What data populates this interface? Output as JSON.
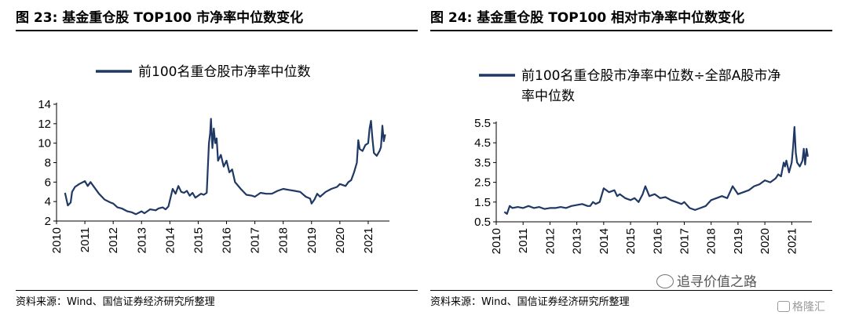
{
  "panels": [
    {
      "title": "图 23:  基金重仓股 TOP100 市净率中位数变化",
      "source": "资料来源：Wind、国信证券经济研究所整理"
    },
    {
      "title": "图 24:  基金重仓股 TOP100 相对市净率中位数变化",
      "source": "资料来源：Wind、国信证券经济研究所整理"
    }
  ],
  "chart_data": [
    {
      "type": "line",
      "legend": [
        "前100名重仓股市净率中位数"
      ],
      "legend_position": "top",
      "x_tick_labels": [
        "2010",
        "2011",
        "2012",
        "2013",
        "2014",
        "2015",
        "2016",
        "2017",
        "2018",
        "2019",
        "2020",
        "2021"
      ],
      "y_tick_labels": [
        "2",
        "4",
        "6",
        "8",
        "10",
        "12",
        "14"
      ],
      "xlim": [
        2010.0,
        2021.75
      ],
      "ylim": [
        2,
        14
      ],
      "y_ticks": [
        2,
        4,
        6,
        8,
        10,
        12,
        14
      ],
      "grid": false,
      "color": "#1f3864",
      "series": [
        {
          "x": [
            2010.3,
            2010.4,
            2010.5,
            2010.55,
            2010.65,
            2010.8,
            2011.0,
            2011.1,
            2011.2,
            2011.35,
            2011.5,
            2011.7,
            2011.9,
            2012.0,
            2012.15,
            2012.3,
            2012.5,
            2012.65,
            2012.8,
            2013.0,
            2013.1,
            2013.3,
            2013.5,
            2013.6,
            2013.75,
            2013.85,
            2013.95,
            2014.1,
            2014.2,
            2014.3,
            2014.4,
            2014.5,
            2014.6,
            2014.7,
            2014.8,
            2014.9,
            2015.0,
            2015.1,
            2015.2,
            2015.3,
            2015.38,
            2015.42,
            2015.45,
            2015.5,
            2015.55,
            2015.6,
            2015.65,
            2015.7,
            2015.8,
            2015.9,
            2016.0,
            2016.1,
            2016.2,
            2016.3,
            2016.5,
            2016.7,
            2016.9,
            2017.0,
            2017.2,
            2017.4,
            2017.6,
            2017.8,
            2018.0,
            2018.2,
            2018.4,
            2018.6,
            2018.8,
            2018.95,
            2019.0,
            2019.1,
            2019.2,
            2019.3,
            2019.5,
            2019.7,
            2019.9,
            2020.0,
            2020.2,
            2020.3,
            2020.4,
            2020.5,
            2020.6,
            2020.65,
            2020.7,
            2020.8,
            2020.9,
            2021.0,
            2021.05,
            2021.1,
            2021.15,
            2021.2,
            2021.3,
            2021.4,
            2021.45,
            2021.5,
            2021.55,
            2021.6
          ],
          "y": [
            4.9,
            3.6,
            3.9,
            5.0,
            5.5,
            5.8,
            6.1,
            5.6,
            6.0,
            5.4,
            4.8,
            4.2,
            3.9,
            3.8,
            3.4,
            3.3,
            3.0,
            2.9,
            2.7,
            3.0,
            2.8,
            3.2,
            3.1,
            3.3,
            3.4,
            3.2,
            3.5,
            5.3,
            4.8,
            5.6,
            5.0,
            4.9,
            5.1,
            4.6,
            4.9,
            4.4,
            4.6,
            4.8,
            4.7,
            4.9,
            10.0,
            11.0,
            12.5,
            9.5,
            11.5,
            10.0,
            10.5,
            8.2,
            8.8,
            7.6,
            8.2,
            7.0,
            7.3,
            6.0,
            5.3,
            4.7,
            4.6,
            4.5,
            4.9,
            4.8,
            4.8,
            5.1,
            5.3,
            5.2,
            5.1,
            5.0,
            4.5,
            4.3,
            3.8,
            4.2,
            4.8,
            4.5,
            5.0,
            5.3,
            5.5,
            5.8,
            5.6,
            6.0,
            6.2,
            7.0,
            8.0,
            10.3,
            9.4,
            9.2,
            9.8,
            10.0,
            11.5,
            12.3,
            10.5,
            9.0,
            8.7,
            9.2,
            9.6,
            11.8,
            10.2,
            10.9
          ]
        }
      ]
    },
    {
      "type": "line",
      "legend": [
        "前100名重仓股市净率中位数÷全部A股市净率中位数"
      ],
      "legend_position": "top",
      "x_tick_labels": [
        "2010",
        "2011",
        "2012",
        "2013",
        "2014",
        "2015",
        "2016",
        "2017",
        "2018",
        "2019",
        "2020",
        "2021"
      ],
      "y_tick_labels": [
        "0.5",
        "1.5",
        "2.5",
        "3.5",
        "4.5",
        "5.5"
      ],
      "xlim": [
        2010.0,
        2021.75
      ],
      "ylim": [
        0.5,
        5.5
      ],
      "y_ticks": [
        0.5,
        1.5,
        2.5,
        3.5,
        4.5,
        5.5
      ],
      "grid": false,
      "color": "#1f3864",
      "series": [
        {
          "x": [
            2010.3,
            2010.4,
            2010.5,
            2010.6,
            2010.8,
            2011.0,
            2011.2,
            2011.4,
            2011.6,
            2011.8,
            2012.0,
            2012.2,
            2012.4,
            2012.6,
            2012.8,
            2013.0,
            2013.2,
            2013.4,
            2013.5,
            2013.6,
            2013.7,
            2013.85,
            2014.0,
            2014.2,
            2014.4,
            2014.5,
            2014.6,
            2014.8,
            2015.0,
            2015.15,
            2015.3,
            2015.45,
            2015.55,
            2015.7,
            2015.9,
            2016.1,
            2016.3,
            2016.5,
            2016.7,
            2016.9,
            2017.0,
            2017.2,
            2017.4,
            2017.6,
            2017.8,
            2018.0,
            2018.2,
            2018.4,
            2018.6,
            2018.8,
            2019.0,
            2019.2,
            2019.4,
            2019.6,
            2019.8,
            2020.0,
            2020.2,
            2020.4,
            2020.5,
            2020.6,
            2020.7,
            2020.75,
            2020.8,
            2020.9,
            2021.0,
            2021.05,
            2021.1,
            2021.15,
            2021.2,
            2021.3,
            2021.4,
            2021.45,
            2021.5,
            2021.55,
            2021.6
          ],
          "y": [
            1.0,
            0.9,
            1.3,
            1.2,
            1.25,
            1.2,
            1.3,
            1.2,
            1.25,
            1.15,
            1.2,
            1.2,
            1.25,
            1.2,
            1.3,
            1.35,
            1.4,
            1.3,
            1.3,
            1.5,
            1.4,
            1.5,
            2.2,
            2.0,
            2.1,
            1.8,
            1.9,
            1.7,
            1.6,
            1.7,
            1.5,
            1.9,
            2.3,
            1.8,
            1.9,
            1.7,
            1.75,
            1.6,
            1.5,
            1.4,
            1.5,
            1.2,
            1.1,
            1.2,
            1.3,
            1.6,
            1.7,
            1.8,
            1.7,
            2.3,
            1.9,
            2.0,
            2.1,
            2.3,
            2.4,
            2.6,
            2.5,
            2.7,
            2.9,
            2.8,
            3.5,
            3.3,
            3.6,
            3.0,
            3.5,
            4.3,
            5.3,
            4.0,
            3.5,
            3.3,
            3.6,
            4.2,
            3.4,
            4.2,
            3.8
          ]
        }
      ]
    }
  ],
  "watermark": {
    "text": "追寻价值之路",
    "icon": "wechat-icon"
  },
  "logo": {
    "text": "格隆汇",
    "icon": "gelonghui-logo-icon"
  }
}
